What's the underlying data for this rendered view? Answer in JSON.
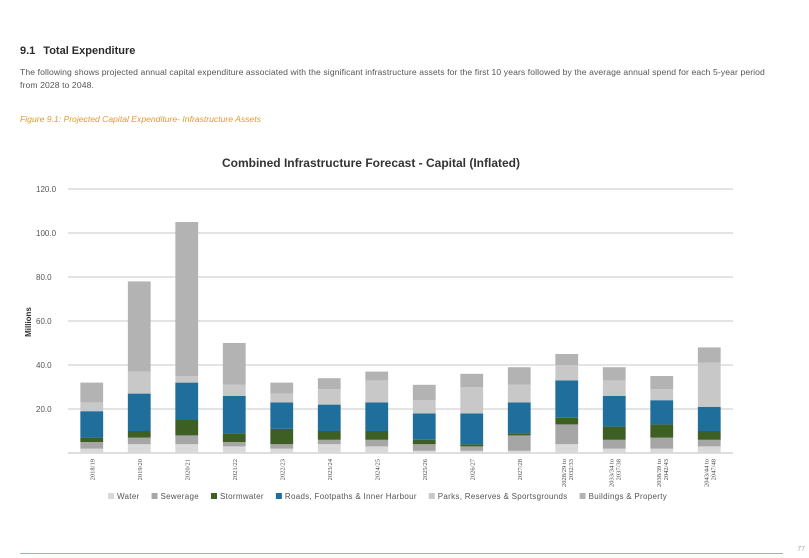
{
  "section": {
    "number": "9.1",
    "title": "Total Expenditure"
  },
  "intro_text": "The following shows projected annual capital expenditure associated with the significant infrastructure assets for the first 10 years followed by the average annual spend for each 5-year period from 2028 to 2048.",
  "figure_caption": "Figure 9.1: Projected Capital Expenditure- Infrastructure Assets",
  "page_number": "77",
  "chart_data": {
    "type": "bar",
    "stacked": true,
    "title": "Combined Infrastructure Forecast - Capital (Inflated)",
    "xlabel": "",
    "ylabel": "Millions",
    "ylim": [
      0,
      120
    ],
    "yticks": [
      20,
      40,
      60,
      80,
      100,
      120
    ],
    "ytick_labels": [
      "20.0",
      "40.0",
      "60.0",
      "80.0",
      "100.0",
      "120.0"
    ],
    "grid": true,
    "legend_position": "bottom",
    "categories": [
      "2018/19",
      "2019/20",
      "2020/21",
      "2021/22",
      "2022/23",
      "2023/24",
      "2024/25",
      "2025/26",
      "2026/27",
      "2027/28",
      "2028/29 to 2032/33",
      "2033/34 to 2037/38",
      "2038/39 to 2042/43",
      "2043/44 to 2047/48"
    ],
    "series": [
      {
        "name": "Water",
        "color": "#d9d9d9",
        "values": [
          2,
          4,
          4,
          3,
          2,
          4,
          3,
          1,
          1,
          1,
          4,
          2,
          2,
          3
        ]
      },
      {
        "name": "Sewerage",
        "color": "#a6a6a6",
        "values": [
          3,
          3,
          4,
          2,
          2,
          2,
          3,
          3,
          2,
          7,
          9,
          4,
          5,
          3
        ]
      },
      {
        "name": "Stormwater",
        "color": "#3e5f24",
        "values": [
          2,
          3,
          7,
          4,
          7,
          4,
          4,
          2,
          1,
          1,
          3,
          6,
          6,
          4
        ]
      },
      {
        "name": "Roads, Footpaths & Inner Harbour",
        "color": "#1f6e9c",
        "values": [
          12,
          17,
          17,
          17,
          12,
          12,
          13,
          12,
          14,
          14,
          17,
          14,
          11,
          11
        ]
      },
      {
        "name": "Parks, Reserves & Sportsgrounds",
        "color": "#c8c8c8",
        "values": [
          4,
          10,
          3,
          5,
          4,
          7,
          10,
          6,
          12,
          8,
          7,
          7,
          5,
          20
        ]
      },
      {
        "name": "Buildings & Property",
        "color": "#b3b3b3",
        "values": [
          9,
          41,
          70,
          19,
          5,
          5,
          4,
          7,
          6,
          8,
          5,
          6,
          6,
          7
        ]
      }
    ]
  }
}
